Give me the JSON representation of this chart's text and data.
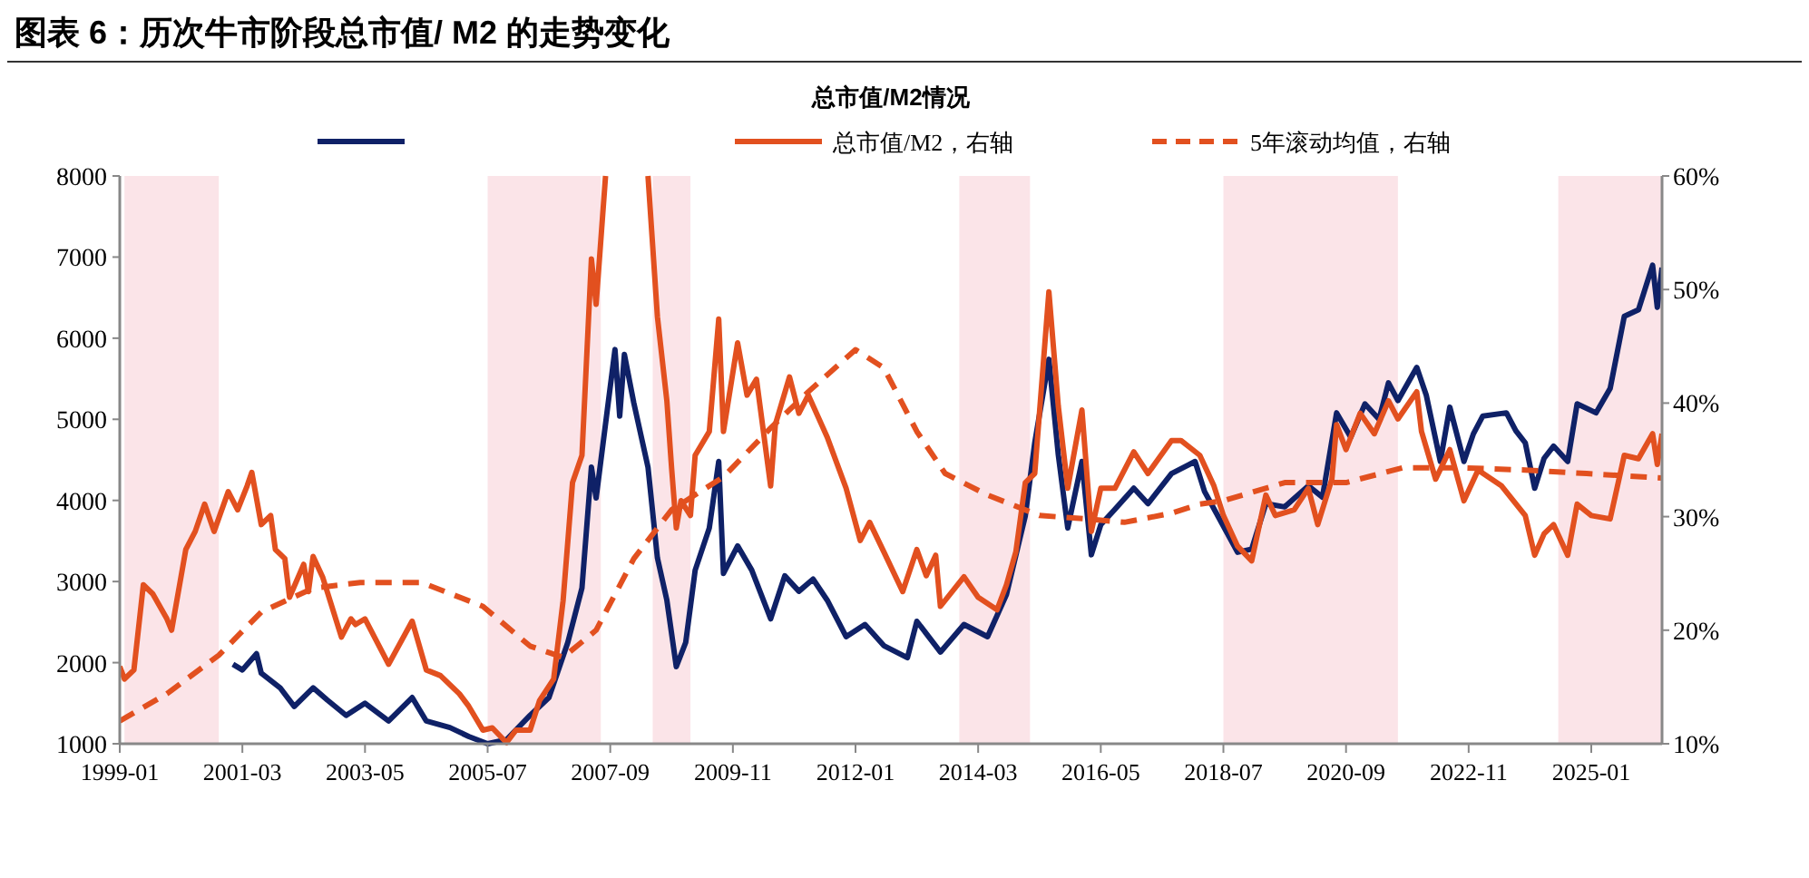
{
  "chart_data": {
    "type": "line",
    "title": "图表 6：历次牛市阶段总市值/ M2 的走势变化",
    "subtitle": "总市值/M2情况",
    "legend": "top",
    "xlim": [
      "1999-01",
      "2026-04"
    ],
    "xticks": [
      "1999-01",
      "2001-03",
      "2003-05",
      "2005-07",
      "2007-09",
      "2009-11",
      "2012-01",
      "2014-03",
      "2016-05",
      "2018-07",
      "2020-09",
      "2022-11",
      "2025-01"
    ],
    "ylim": [
      1000,
      8000
    ],
    "yticks": [
      1000,
      2000,
      3000,
      4000,
      5000,
      6000,
      7000,
      8000
    ],
    "y2lim": [
      10,
      60
    ],
    "y2ticks": [
      {
        "value": 10,
        "label": "10%"
      },
      {
        "value": 20,
        "label": "20%"
      },
      {
        "value": 30,
        "label": "30%"
      },
      {
        "value": 40,
        "label": "40%"
      },
      {
        "value": 50,
        "label": "50%"
      },
      {
        "value": 60,
        "label": "60%"
      }
    ],
    "bands": [
      {
        "axis": "x",
        "from": "1999-02",
        "to": "2000-10",
        "color": "#fbe4e8"
      },
      {
        "axis": "x",
        "from": "2005-07",
        "to": "2007-07",
        "color": "#fbe4e8"
      },
      {
        "axis": "x",
        "from": "2008-06",
        "to": "2009-02",
        "color": "#fbe4e8"
      },
      {
        "axis": "x",
        "from": "2013-11",
        "to": "2015-02",
        "color": "#fbe4e8"
      },
      {
        "axis": "x",
        "from": "2018-07",
        "to": "2021-08",
        "color": "#fbe4e8"
      },
      {
        "axis": "x",
        "from": "2024-06",
        "to": "2026-04",
        "color": "#fbe4e8"
      }
    ],
    "series": [
      {
        "color": "#0f2167",
        "line_style": "solid",
        "x": [
          "2001-01",
          "2001-03",
          "2001-06",
          "2001-07",
          "2001-11",
          "2002-02",
          "2002-06",
          "2002-09",
          "2003-01",
          "2003-05",
          "2003-10",
          "2004-03",
          "2004-06",
          "2004-11",
          "2005-03",
          "2005-07",
          "2005-11",
          "2006-04",
          "2006-08",
          "2006-12",
          "2007-03",
          "2007-05",
          "2007-06",
          "2007-10",
          "2007-11",
          "2007-12",
          "2008-02",
          "2008-05",
          "2008-07",
          "2008-09",
          "2008-11",
          "2009-01",
          "2009-03",
          "2009-06",
          "2009-08",
          "2009-09",
          "2009-12",
          "2010-03",
          "2010-07",
          "2010-10",
          "2011-01",
          "2011-04",
          "2011-07",
          "2011-11",
          "2012-03",
          "2012-07",
          "2012-12",
          "2013-02",
          "2013-07",
          "2013-12",
          "2014-05",
          "2014-09",
          "2015-01",
          "2015-03",
          "2015-06",
          "2015-08",
          "2015-10",
          "2016-01",
          "2016-03",
          "2016-05",
          "2016-08",
          "2016-12",
          "2017-03",
          "2017-08",
          "2018-01",
          "2018-03",
          "2018-06",
          "2018-10",
          "2019-01",
          "2019-04",
          "2019-08",
          "2020-01",
          "2020-04",
          "2020-07",
          "2020-10",
          "2021-01",
          "2021-04",
          "2021-06",
          "2021-08",
          "2021-12",
          "2022-02",
          "2022-05",
          "2022-07",
          "2022-10",
          "2022-12",
          "2023-02",
          "2023-07",
          "2023-09",
          "2023-11",
          "2024-01",
          "2024-03",
          "2024-05",
          "2024-08",
          "2024-10",
          "2025-02",
          "2025-05",
          "2025-08",
          "2025-11",
          "2026-02",
          "2026-03",
          "2026-04"
        ],
        "values": [
          1980,
          1910,
          2110,
          1870,
          1690,
          1460,
          1690,
          1540,
          1350,
          1500,
          1280,
          1570,
          1280,
          1200,
          1090,
          1000,
          1050,
          1350,
          1570,
          2250,
          2920,
          4410,
          4030,
          5860,
          5040,
          5800,
          5200,
          4410,
          3290,
          2770,
          1950,
          2250,
          3140,
          3660,
          4480,
          3100,
          3440,
          3140,
          2540,
          3070,
          2880,
          3030,
          2770,
          2320,
          2470,
          2210,
          2060,
          2510,
          2130,
          2470,
          2320,
          2840,
          3810,
          4710,
          5740,
          4560,
          3660,
          4480,
          3330,
          3700,
          3890,
          4150,
          3960,
          4330,
          4480,
          4110,
          3790,
          3360,
          3400,
          3960,
          3920,
          4180,
          4040,
          5080,
          4780,
          5190,
          5000,
          5450,
          5230,
          5640,
          5300,
          4480,
          5150,
          4480,
          4820,
          5040,
          5080,
          4860,
          4710,
          4150,
          4520,
          4670,
          4480,
          5190,
          5080,
          5380,
          6270,
          6350,
          6900,
          6380,
          6870
        ]
      },
      {
        "name": "总市值/M2，右轴",
        "color": "#e2501f",
        "line_style": "solid",
        "axis": "y2",
        "x": [
          "1999-01",
          "1999-02",
          "1999-04",
          "1999-06",
          "1999-08",
          "1999-11",
          "1999-12",
          "2000-03",
          "2000-05",
          "2000-07",
          "2000-09",
          "2000-12",
          "2001-02",
          "2001-04",
          "2001-05",
          "2001-07",
          "2001-09",
          "2001-10",
          "2001-12",
          "2002-01",
          "2002-04",
          "2002-05",
          "2002-06",
          "2002-08",
          "2002-12",
          "2003-02",
          "2003-03",
          "2003-05",
          "2003-10",
          "2004-03",
          "2004-06",
          "2004-09",
          "2005-01",
          "2005-03",
          "2005-06",
          "2005-08",
          "2005-11",
          "2006-01",
          "2006-04",
          "2006-06",
          "2006-09",
          "2006-11",
          "2007-01",
          "2007-03",
          "2007-05",
          "2007-06",
          "2007-08",
          "2007-12",
          "2008-05",
          "2008-07",
          "2008-09",
          "2008-10",
          "2008-11",
          "2008-12",
          "2009-02",
          "2009-03",
          "2009-06",
          "2009-08",
          "2009-09",
          "2009-12",
          "2010-02",
          "2010-04",
          "2010-07",
          "2010-08",
          "2010-11",
          "2011-01",
          "2011-03",
          "2011-07",
          "2011-11",
          "2012-02",
          "2012-04",
          "2012-07",
          "2012-11",
          "2013-02",
          "2013-04",
          "2013-06",
          "2013-07",
          "2013-12",
          "2014-03",
          "2014-07",
          "2014-09",
          "2014-11",
          "2015-01",
          "2015-03",
          "2015-06",
          "2015-08",
          "2015-10",
          "2016-01",
          "2016-03",
          "2016-05",
          "2016-08",
          "2016-12",
          "2017-03",
          "2017-08",
          "2017-10",
          "2018-02",
          "2018-05",
          "2018-07",
          "2018-10",
          "2019-01",
          "2019-04",
          "2019-06",
          "2019-10",
          "2020-01",
          "2020-03",
          "2020-06",
          "2020-07",
          "2020-09",
          "2020-12",
          "2021-03",
          "2021-06",
          "2021-08",
          "2021-12",
          "2022-01",
          "2022-04",
          "2022-07",
          "2022-10",
          "2023-01",
          "2023-06",
          "2023-11",
          "2024-01",
          "2024-03",
          "2024-05",
          "2024-08",
          "2024-10",
          "2025-01",
          "2025-05",
          "2025-08",
          "2025-11",
          "2026-02",
          "2026-03",
          "2026-04"
        ],
        "values": [
          16.8,
          15.7,
          16.5,
          24.0,
          23.2,
          21.0,
          20.0,
          27.1,
          28.7,
          31.1,
          28.7,
          32.2,
          30.6,
          32.7,
          33.9,
          29.3,
          30.1,
          27.1,
          26.3,
          22.9,
          25.8,
          23.4,
          26.5,
          24.7,
          19.4,
          21.0,
          20.5,
          21.0,
          17.0,
          20.8,
          16.5,
          16.0,
          14.4,
          13.3,
          11.2,
          11.4,
          10.1,
          11.2,
          11.2,
          13.8,
          15.7,
          22.6,
          33.0,
          35.4,
          52.7,
          48.7,
          60,
          null,
          60,
          47.6,
          40.2,
          34.3,
          29.0,
          31.4,
          30.1,
          35.4,
          37.5,
          47.4,
          37.5,
          45.3,
          40.7,
          42.1,
          32.7,
          38.1,
          42.3,
          39.1,
          40.7,
          37.0,
          32.5,
          27.9,
          29.5,
          26.9,
          23.4,
          27.1,
          24.8,
          26.6,
          22.1,
          24.7,
          22.9,
          21.8,
          24.0,
          26.9,
          33.0,
          33.8,
          49.8,
          39.7,
          32.5,
          39.4,
          28.7,
          32.5,
          32.5,
          35.7,
          33.8,
          36.7,
          36.7,
          35.4,
          32.7,
          30.1,
          27.4,
          26.1,
          31.9,
          30.1,
          30.6,
          32.5,
          29.3,
          33.3,
          38.1,
          35.9,
          39.1,
          37.3,
          40.2,
          38.6,
          41.0,
          37.5,
          33.3,
          35.9,
          31.4,
          34.1,
          32.7,
          30.1,
          26.6,
          28.5,
          29.3,
          26.6,
          31.1,
          30.1,
          29.8,
          35.4,
          35.1,
          37.3,
          34.6,
          37.3
        ]
      },
      {
        "name": "5年滚动均值，右轴",
        "color": "#e2501f",
        "line_style": "dashed",
        "axis": "y2",
        "x": [
          "1999-01",
          "1999-11",
          "2000-10",
          "2001-07",
          "2002-06",
          "2003-04",
          "2004-05",
          "2005-06",
          "2006-04",
          "2006-11",
          "2007-06",
          "2008-02",
          "2008-10",
          "2009-09",
          "2010-07",
          "2011-03",
          "2012-01",
          "2012-07",
          "2013-02",
          "2013-08",
          "2014-05",
          "2015-04",
          "2016-02",
          "2016-10",
          "2017-08",
          "2018-02",
          "2018-07",
          "2019-08",
          "2020-09",
          "2021-09",
          "2022-10",
          "2023-11",
          "2024-12",
          "2026-04"
        ],
        "values": [
          12.0,
          14.4,
          17.8,
          21.6,
          23.7,
          24.2,
          24.2,
          22.1,
          18.6,
          17.6,
          20.0,
          26.3,
          30.6,
          33.5,
          37.8,
          41.0,
          44.7,
          43.1,
          37.5,
          33.8,
          31.9,
          30.1,
          29.8,
          29.5,
          30.3,
          31.1,
          31.4,
          33.0,
          33.0,
          34.3,
          34.3,
          34.1,
          33.8,
          33.4
        ]
      }
    ]
  }
}
